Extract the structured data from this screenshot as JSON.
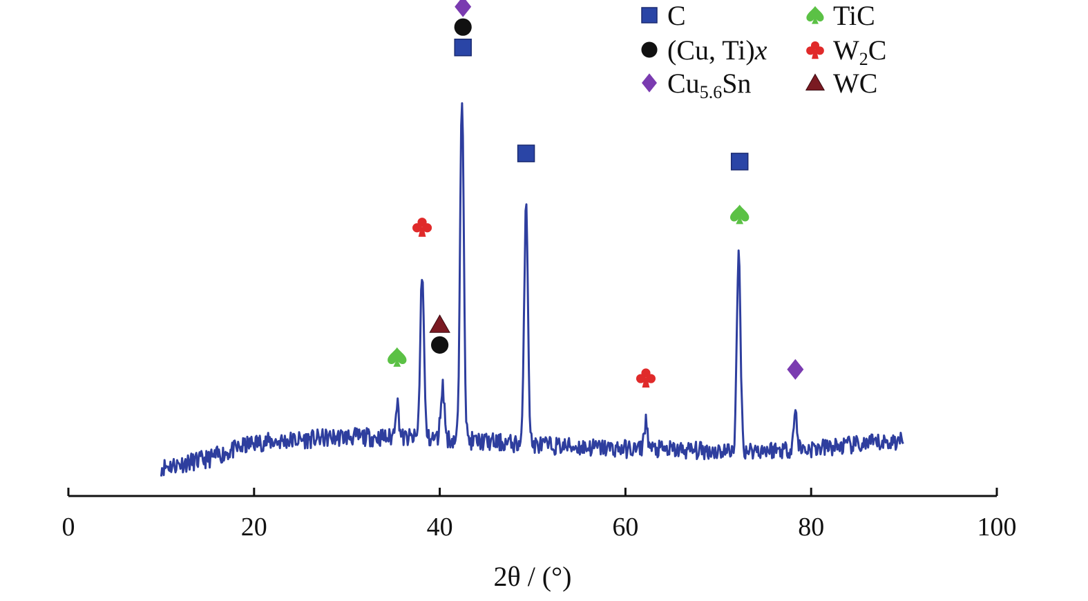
{
  "chart_data": {
    "type": "line",
    "xlabel": "2θ / (°)",
    "xlim": [
      0,
      100
    ],
    "xticks": [
      0,
      20,
      40,
      60,
      80,
      100
    ],
    "ylim": [
      0,
      1.0
    ],
    "x_start": 10,
    "x_end": 90,
    "series": [
      {
        "color": "#2e3e9e",
        "baseline": [
          [
            10,
            0.04
          ],
          [
            15,
            0.06
          ],
          [
            20,
            0.1
          ],
          [
            30,
            0.115
          ],
          [
            40,
            0.11
          ],
          [
            50,
            0.095
          ],
          [
            60,
            0.085
          ],
          [
            70,
            0.08
          ],
          [
            80,
            0.085
          ],
          [
            90,
            0.105
          ]
        ],
        "peaks": [
          {
            "x": 35.4,
            "y": 0.2
          },
          {
            "x": 38.1,
            "y": 0.52
          },
          {
            "x": 40.3,
            "y": 0.24
          },
          {
            "x": 42.4,
            "y": 0.95
          },
          {
            "x": 49.3,
            "y": 0.7
          },
          {
            "x": 62.2,
            "y": 0.15
          },
          {
            "x": 72.2,
            "y": 0.56
          },
          {
            "x": 78.3,
            "y": 0.17
          }
        ]
      }
    ],
    "phases": [
      {
        "key": "C",
        "label": "C",
        "symbol": "square",
        "color": "#2a45a6"
      },
      {
        "key": "CuTi",
        "label": "(Cu, Ti)x",
        "symbol": "circle",
        "color": "#111111"
      },
      {
        "key": "CuSn",
        "label": "Cu5.6Sn",
        "symbol": "diamond",
        "color": "#7a3bb0"
      },
      {
        "key": "TiC",
        "label": "TiC",
        "symbol": "spade",
        "color": "#5bc145"
      },
      {
        "key": "W2C",
        "label": "W2C",
        "symbol": "club",
        "color": "#e02a2a"
      },
      {
        "key": "WC",
        "label": "WC",
        "symbol": "triangle",
        "color": "#7a1a22"
      }
    ],
    "peak_markers": [
      {
        "x": 35.4,
        "y": 0.31,
        "phase": "TiC"
      },
      {
        "x": 38.1,
        "y": 0.63,
        "phase": "W2C"
      },
      {
        "x": 40.0,
        "y": 0.39,
        "phase": "WC"
      },
      {
        "x": 40.0,
        "y": 0.34,
        "phase": "CuTi"
      },
      {
        "x": 42.5,
        "y": 1.07,
        "phase": "C"
      },
      {
        "x": 42.5,
        "y": 1.12,
        "phase": "CuTi"
      },
      {
        "x": 42.5,
        "y": 1.17,
        "phase": "CuSn"
      },
      {
        "x": 49.3,
        "y": 0.81,
        "phase": "C"
      },
      {
        "x": 62.2,
        "y": 0.26,
        "phase": "W2C"
      },
      {
        "x": 72.3,
        "y": 0.66,
        "phase": "TiC"
      },
      {
        "x": 72.3,
        "y": 0.79,
        "phase": "C"
      },
      {
        "x": 78.3,
        "y": 0.28,
        "phase": "CuSn"
      }
    ]
  }
}
